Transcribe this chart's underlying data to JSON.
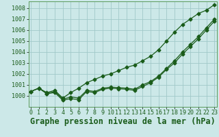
{
  "title": "Graphe pression niveau de la mer (hPa)",
  "bg_color": "#cce8e8",
  "grid_color": "#a0c8c8",
  "line_color": "#1a5c1a",
  "x_ticks": [
    0,
    1,
    2,
    3,
    4,
    5,
    6,
    7,
    8,
    9,
    10,
    11,
    12,
    13,
    14,
    15,
    16,
    17,
    18,
    19,
    20,
    21,
    22,
    23
  ],
  "ylim": [
    999.0,
    1008.6
  ],
  "yticks": [
    1000,
    1001,
    1002,
    1003,
    1004,
    1005,
    1006,
    1007,
    1008
  ],
  "series_upper": [
    1000.4,
    1000.7,
    1000.3,
    1000.5,
    999.8,
    1000.3,
    1000.7,
    1001.2,
    1001.5,
    1001.8,
    1002.0,
    1002.3,
    1002.6,
    1002.8,
    1003.2,
    1003.6,
    1004.2,
    1005.0,
    1005.8,
    1006.5,
    1007.0,
    1007.5,
    1007.8,
    1008.3
  ],
  "series_mid": [
    1000.4,
    1000.7,
    1000.2,
    1000.4,
    999.7,
    999.9,
    999.8,
    1000.5,
    1000.4,
    1000.7,
    1000.8,
    1000.75,
    1000.7,
    1000.6,
    1001.0,
    1001.3,
    1001.8,
    1002.5,
    1003.2,
    1004.0,
    1004.7,
    1005.4,
    1006.2,
    1007.0
  ],
  "series_lower": [
    1000.4,
    1000.7,
    1000.2,
    1000.3,
    999.6,
    999.75,
    999.65,
    1000.4,
    1000.3,
    1000.6,
    1000.7,
    1000.65,
    1000.6,
    1000.5,
    1000.85,
    1001.2,
    1001.7,
    1002.4,
    1003.0,
    1003.8,
    1004.5,
    1005.2,
    1006.0,
    1006.8
  ],
  "title_fontsize": 8.5,
  "tick_fontsize": 6.0,
  "marker_size": 2.5,
  "linewidth": 0.9
}
